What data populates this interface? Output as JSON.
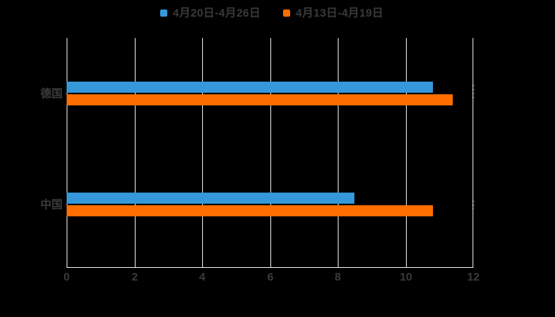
{
  "legend": {
    "items": [
      {
        "label": "4月20日-4月26日",
        "color": "#3498db"
      },
      {
        "label": "4月13日-4月19日",
        "color": "#ff6e00"
      }
    ]
  },
  "chart_data": {
    "type": "bar",
    "orientation": "horizontal",
    "title": "",
    "xlabel": "",
    "ylabel": "",
    "categories": [
      "德国",
      "中国"
    ],
    "series": [
      {
        "name": "4月20日-4月26日",
        "color": "#3498db",
        "values": [
          10.8,
          8.5
        ]
      },
      {
        "name": "4月13日-4月19日",
        "color": "#ff6e00",
        "values": [
          11.4,
          10.8
        ]
      }
    ],
    "xlim": [
      0,
      12
    ],
    "xticks": [
      "0",
      "2",
      "4",
      "6",
      "8",
      "10",
      "12"
    ],
    "grid": true,
    "legend_position": "top",
    "background_color": "#000000",
    "grid_color": "#dcdcdc",
    "text_color": "#3b3b3b"
  }
}
